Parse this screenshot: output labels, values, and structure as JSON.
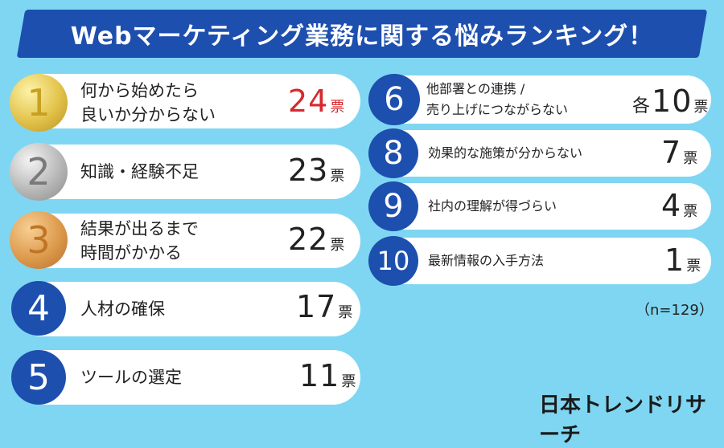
{
  "title": "Webマーケティング業務に関する悩みランキング！",
  "unit": "票",
  "items": [
    {
      "rank": "1",
      "label": "何から始めたら\n良いか分からない",
      "prefix": "",
      "votes": "24",
      "highlight": "#d8292f"
    },
    {
      "rank": "2",
      "label": "知識・経験不足",
      "prefix": "",
      "votes": "23"
    },
    {
      "rank": "3",
      "label": "結果が出るまで\n時間がかかる",
      "prefix": "",
      "votes": "22"
    },
    {
      "rank": "4",
      "label": "人材の確保",
      "prefix": "",
      "votes": "17"
    },
    {
      "rank": "5",
      "label": "ツールの選定",
      "prefix": "",
      "votes": "11"
    },
    {
      "rank": "6",
      "label": "他部署との連携 /\n売り上げにつながらない",
      "prefix": "各",
      "votes": "10"
    },
    {
      "rank": "8",
      "label": "効果的な施策が分からない",
      "prefix": "",
      "votes": "7"
    },
    {
      "rank": "9",
      "label": "社内の理解が得づらい",
      "prefix": "",
      "votes": "4"
    },
    {
      "rank": "10",
      "label": "最新情報の入手方法",
      "prefix": "",
      "votes": "1"
    }
  ],
  "sample_note": "（n=129）",
  "brand": "日本トレンドリサーチ",
  "colors": {
    "background": "#7fd6f2",
    "banner": "#1d4fae",
    "pill": "#ffffff",
    "highlight": "#d8292f"
  }
}
